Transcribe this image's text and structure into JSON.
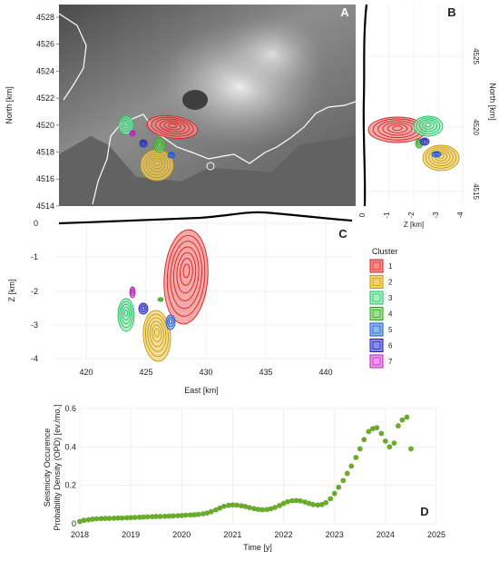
{
  "panels": {
    "A": {
      "letter": "A",
      "ylabel": "North [km]",
      "yticks": [
        "4528",
        "4526",
        "4524",
        "4522",
        "4520",
        "4518",
        "4516",
        "4514"
      ]
    },
    "B": {
      "letter": "B",
      "ylabel": "North [km]",
      "xlabel": "Z [km]",
      "xticks": [
        "0",
        "-1",
        "-2",
        "-3",
        "-4"
      ],
      "yticks": [
        "4525",
        "4520",
        "4515"
      ]
    },
    "C": {
      "letter": "C",
      "ylabel": "Z [km]",
      "xlabel": "East [km]",
      "xticks": [
        "420",
        "425",
        "430",
        "435",
        "440"
      ],
      "yticks": [
        "0",
        "-1",
        "-2",
        "-3",
        "-4"
      ]
    },
    "D": {
      "letter": "D",
      "xlabel": "Time [y]"
    }
  },
  "legend": {
    "title": "Cluster",
    "items": [
      {
        "label": "1",
        "fill": "#f28e8e",
        "stroke": "#d61f1f"
      },
      {
        "label": "2",
        "fill": "#f1d279",
        "stroke": "#c49a00"
      },
      {
        "label": "3",
        "fill": "#a8efc6",
        "stroke": "#1cbf5e"
      },
      {
        "label": "4",
        "fill": "#9ee090",
        "stroke": "#2f9f22"
      },
      {
        "label": "5",
        "fill": "#8fb8ee",
        "stroke": "#1e4fd1"
      },
      {
        "label": "6",
        "fill": "#8a8ee8",
        "stroke": "#201fa8"
      },
      {
        "label": "7",
        "fill": "#f39af0",
        "stroke": "#b21fb5"
      }
    ]
  },
  "chart_data": {
    "type": "scatter",
    "ylabel_line1": "Seismicity Occurence",
    "ylabel_line2": "Probability Density (OPD) [ev./mo.]",
    "xlabel": "Time [y]",
    "xlim": [
      2018,
      2025
    ],
    "ylim": [
      0,
      0.6
    ],
    "xticks": [
      "2018",
      "2019",
      "2020",
      "2021",
      "2022",
      "2023",
      "2024",
      "2025"
    ],
    "yticks": [
      "0",
      "0.2",
      "0.4",
      "0.6"
    ],
    "point_color": "#6aaa2c",
    "x": [
      2018.0,
      2018.08,
      2018.17,
      2018.25,
      2018.33,
      2018.42,
      2018.5,
      2018.58,
      2018.67,
      2018.75,
      2018.83,
      2018.92,
      2019.0,
      2019.08,
      2019.17,
      2019.25,
      2019.33,
      2019.42,
      2019.5,
      2019.58,
      2019.67,
      2019.75,
      2019.83,
      2019.92,
      2020.0,
      2020.08,
      2020.17,
      2020.25,
      2020.33,
      2020.42,
      2020.5,
      2020.58,
      2020.67,
      2020.75,
      2020.83,
      2020.92,
      2021.0,
      2021.08,
      2021.17,
      2021.25,
      2021.33,
      2021.42,
      2021.5,
      2021.58,
      2021.67,
      2021.75,
      2021.83,
      2021.92,
      2022.0,
      2022.08,
      2022.17,
      2022.25,
      2022.33,
      2022.42,
      2022.5,
      2022.58,
      2022.67,
      2022.75,
      2022.83,
      2022.92,
      2023.0,
      2023.08,
      2023.17,
      2023.25,
      2023.33,
      2023.42,
      2023.5,
      2023.58,
      2023.67,
      2023.75,
      2023.83,
      2023.92,
      2024.0,
      2024.08,
      2024.17,
      2024.25,
      2024.33,
      2024.42,
      2024.5
    ],
    "y": [
      0.012,
      0.018,
      0.021,
      0.024,
      0.026,
      0.027,
      0.028,
      0.028,
      0.029,
      0.03,
      0.03,
      0.031,
      0.032,
      0.033,
      0.034,
      0.035,
      0.036,
      0.037,
      0.038,
      0.038,
      0.039,
      0.04,
      0.041,
      0.042,
      0.043,
      0.045,
      0.046,
      0.047,
      0.049,
      0.052,
      0.056,
      0.063,
      0.072,
      0.082,
      0.091,
      0.096,
      0.098,
      0.097,
      0.094,
      0.09,
      0.084,
      0.079,
      0.075,
      0.073,
      0.074,
      0.078,
      0.085,
      0.095,
      0.106,
      0.115,
      0.12,
      0.121,
      0.119,
      0.113,
      0.106,
      0.1,
      0.098,
      0.1,
      0.11,
      0.13,
      0.158,
      0.19,
      0.225,
      0.262,
      0.3,
      0.345,
      0.39,
      0.438,
      0.48,
      0.495,
      0.5,
      0.47,
      0.43,
      0.4,
      0.42,
      0.51,
      0.54,
      0.555,
      0.39
    ]
  }
}
